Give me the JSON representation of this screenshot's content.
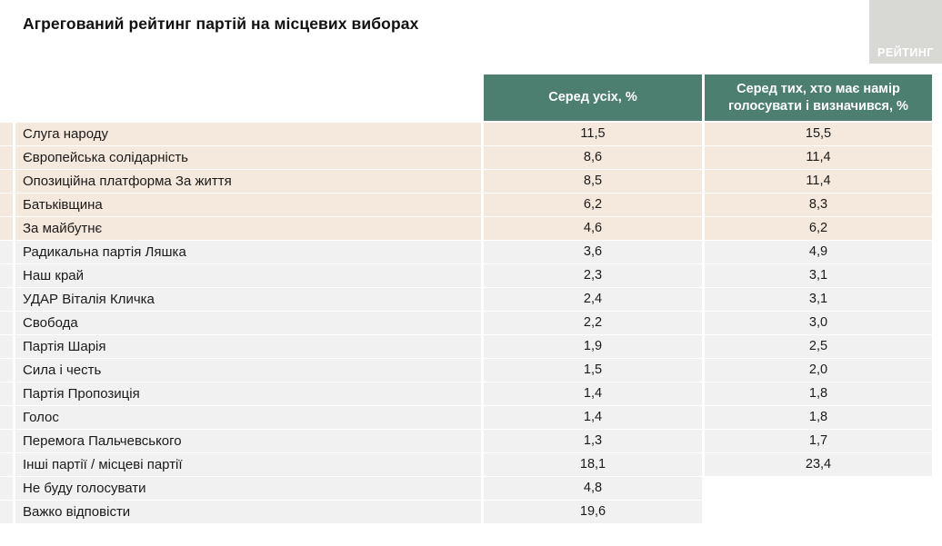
{
  "page": {
    "title": "Агрегований рейтинг партій на місцевих виборах",
    "logo_text": "РЕЙТИНГ"
  },
  "colors": {
    "header_bg": "#4d7f70",
    "highlight_row_bg": "#f5e8dc",
    "row_bg": "#f1f1f1",
    "logo_bg": "#d8d8d5"
  },
  "table": {
    "columns": [
      "Серед усіх, %",
      "Серед тих, хто має намір голосувати і визначився, %"
    ],
    "rows": [
      {
        "label": "Слуга народу",
        "all": "11,5",
        "decided": "15,5",
        "highlight": true
      },
      {
        "label": "Європейська солідарність",
        "all": "8,6",
        "decided": "11,4",
        "highlight": true
      },
      {
        "label": "Опозиційна платформа За життя",
        "all": "8,5",
        "decided": "11,4",
        "highlight": true
      },
      {
        "label": "Батьківщина",
        "all": "6,2",
        "decided": "8,3",
        "highlight": true
      },
      {
        "label": "За майбутнє",
        "all": "4,6",
        "decided": "6,2",
        "highlight": true
      },
      {
        "label": "Радикальна партія Ляшка",
        "all": "3,6",
        "decided": "4,9",
        "highlight": false
      },
      {
        "label": "Наш край",
        "all": "2,3",
        "decided": "3,1",
        "highlight": false
      },
      {
        "label": "УДАР Віталія Кличка",
        "all": "2,4",
        "decided": "3,1",
        "highlight": false
      },
      {
        "label": "Свобода",
        "all": "2,2",
        "decided": "3,0",
        "highlight": false
      },
      {
        "label": "Партія Шарія",
        "all": "1,9",
        "decided": "2,5",
        "highlight": false
      },
      {
        "label": "Сила і честь",
        "all": "1,5",
        "decided": "2,0",
        "highlight": false
      },
      {
        "label": "Партія Пропозиція",
        "all": "1,4",
        "decided": "1,8",
        "highlight": false
      },
      {
        "label": "Голос",
        "all": "1,4",
        "decided": "1,8",
        "highlight": false
      },
      {
        "label": "Перемога Пальчевського",
        "all": "1,3",
        "decided": "1,7",
        "highlight": false
      },
      {
        "label": "Інші партії / місцеві партії",
        "all": "18,1",
        "decided": "23,4",
        "highlight": false
      },
      {
        "label": "Не буду голосувати",
        "all": "4,8",
        "decided": null,
        "highlight": false
      },
      {
        "label": "Важко відповісти",
        "all": "19,6",
        "decided": null,
        "highlight": false
      }
    ]
  },
  "chart_data": {
    "type": "table",
    "title": "Агрегований рейтинг партій на місцевих виборах",
    "categories": [
      "Слуга народу",
      "Європейська солідарність",
      "Опозиційна платформа За життя",
      "Батьківщина",
      "За майбутнє",
      "Радикальна партія Ляшка",
      "Наш край",
      "УДАР Віталія Кличка",
      "Свобода",
      "Партія Шарія",
      "Сила і честь",
      "Партія Пропозиція",
      "Голос",
      "Перемога Пальчевського",
      "Інші партії / місцеві партії",
      "Не буду голосувати",
      "Важко відповісти"
    ],
    "series": [
      {
        "name": "Серед усіх, %",
        "values": [
          11.5,
          8.6,
          8.5,
          6.2,
          4.6,
          3.6,
          2.3,
          2.4,
          2.2,
          1.9,
          1.5,
          1.4,
          1.4,
          1.3,
          18.1,
          4.8,
          19.6
        ]
      },
      {
        "name": "Серед тих, хто має намір голосувати і визначився, %",
        "values": [
          15.5,
          11.4,
          11.4,
          8.3,
          6.2,
          4.9,
          3.1,
          3.1,
          3.0,
          2.5,
          2.0,
          1.8,
          1.8,
          1.7,
          23.4,
          null,
          null
        ]
      }
    ],
    "notes": "Перші 5 рядків виділені персиковим кольором; останні 2 рядки не мають значення у другій колонці"
  }
}
